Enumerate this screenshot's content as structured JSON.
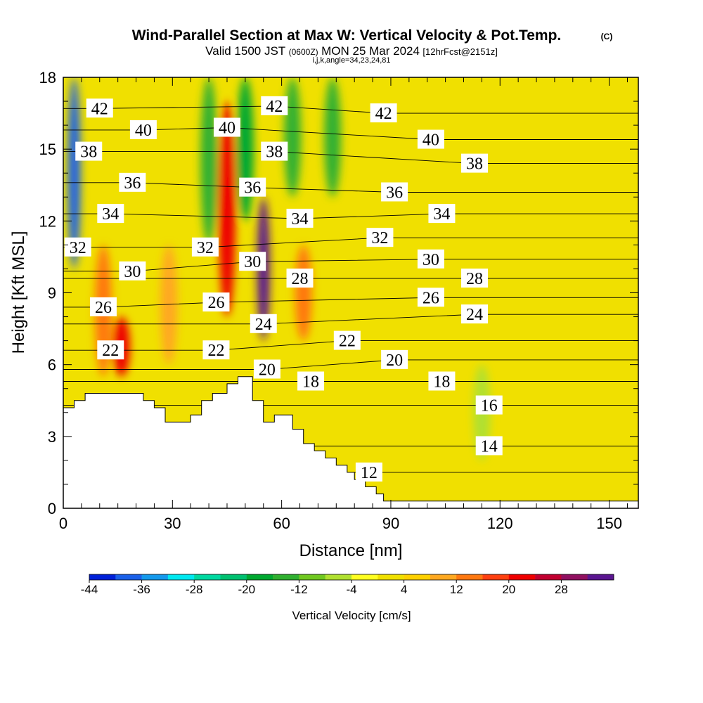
{
  "title": {
    "main": "Wind-Parallel Section at Max W: Vertical Velocity & Pot.Temp.",
    "copyright": "(C)",
    "valid_prefix": "Valid 1500 JST",
    "valid_utc": "(0600Z)",
    "valid_date": "MON 25 Mar 2024",
    "forecast": "[12hrFcst@2151z]",
    "indices": "i,j,k,angle=34,23,24,81"
  },
  "chart_data": {
    "type": "heatmap",
    "xlabel": "Distance [nm]",
    "ylabel": "Height [Kft MSL]",
    "xlim": [
      0,
      158
    ],
    "ylim": [
      0,
      18
    ],
    "x_ticks": [
      "0",
      "30",
      "60",
      "90",
      "120",
      "150"
    ],
    "x_tick_values": [
      0,
      30,
      60,
      90,
      120,
      150
    ],
    "y_ticks": [
      "0",
      "3",
      "6",
      "9",
      "12",
      "15",
      "18"
    ],
    "y_tick_values": [
      0,
      3,
      6,
      9,
      12,
      15,
      18
    ],
    "background_category": "0 to 4 cm/s",
    "vertical_velocity_features": [
      {
        "x": 3,
        "y_range": [
          10,
          18
        ],
        "value": -40
      },
      {
        "x": 11,
        "y_range": [
          5.5,
          11
        ],
        "value": 12
      },
      {
        "x": 16,
        "y_range": [
          5.5,
          8
        ],
        "value": 20
      },
      {
        "x": 29,
        "y_range": [
          6,
          11
        ],
        "value": 8
      },
      {
        "x": 40,
        "y_range": [
          11,
          18
        ],
        "value": -14
      },
      {
        "x": 45,
        "y_range": [
          8,
          17
        ],
        "value": 20
      },
      {
        "x": 50,
        "y_range": [
          12,
          18
        ],
        "value": -20
      },
      {
        "x": 55,
        "y_range": [
          7,
          13
        ],
        "value": 32
      },
      {
        "x": 63,
        "y_range": [
          13,
          18
        ],
        "value": -16
      },
      {
        "x": 66,
        "y_range": [
          7,
          11
        ],
        "value": 12
      },
      {
        "x": 74,
        "y_range": [
          13,
          18
        ],
        "value": -14
      },
      {
        "x": 115,
        "y_range": [
          2,
          6
        ],
        "value": -6
      }
    ],
    "theta_contours": [
      {
        "label": "12",
        "value": 12,
        "label_x": 84,
        "label_y": 1.5
      },
      {
        "label": "14",
        "value": 14,
        "label_x": 117,
        "label_y": 2.6
      },
      {
        "label": "16",
        "value": 16,
        "label_x": 117,
        "label_y": 4.3
      },
      {
        "label": "18",
        "value": 18,
        "label_x": 68,
        "label_y": 5.3
      },
      {
        "label": "18",
        "value": 18,
        "label_x": 104,
        "label_y": 5.3
      },
      {
        "label": "20",
        "value": 20,
        "label_x": 56,
        "label_y": 5.8
      },
      {
        "label": "20",
        "value": 20,
        "label_x": 91,
        "label_y": 6.2
      },
      {
        "label": "22",
        "value": 22,
        "label_x": 13,
        "label_y": 6.6
      },
      {
        "label": "22",
        "value": 22,
        "label_x": 42,
        "label_y": 6.6
      },
      {
        "label": "22",
        "value": 22,
        "label_x": 78,
        "label_y": 7
      },
      {
        "label": "24",
        "value": 24,
        "label_x": 55,
        "label_y": 7.7
      },
      {
        "label": "24",
        "value": 24,
        "label_x": 113,
        "label_y": 8.1
      },
      {
        "label": "26",
        "value": 26,
        "label_x": 11,
        "label_y": 8.4
      },
      {
        "label": "26",
        "value": 26,
        "label_x": 42,
        "label_y": 8.6
      },
      {
        "label": "26",
        "value": 26,
        "label_x": 101,
        "label_y": 8.8
      },
      {
        "label": "28",
        "value": 28,
        "label_x": 65,
        "label_y": 9.6
      },
      {
        "label": "28",
        "value": 28,
        "label_x": 113,
        "label_y": 9.6
      },
      {
        "label": "30",
        "value": 30,
        "label_x": 19,
        "label_y": 9.9
      },
      {
        "label": "30",
        "value": 30,
        "label_x": 52,
        "label_y": 10.3
      },
      {
        "label": "30",
        "value": 30,
        "label_x": 101,
        "label_y": 10.4
      },
      {
        "label": "32",
        "value": 32,
        "label_x": 4,
        "label_y": 10.9
      },
      {
        "label": "32",
        "value": 32,
        "label_x": 39,
        "label_y": 10.9
      },
      {
        "label": "32",
        "value": 32,
        "label_x": 87,
        "label_y": 11.3
      },
      {
        "label": "34",
        "value": 34,
        "label_x": 13,
        "label_y": 12.3
      },
      {
        "label": "34",
        "value": 34,
        "label_x": 65,
        "label_y": 12.1
      },
      {
        "label": "34",
        "value": 34,
        "label_x": 104,
        "label_y": 12.3
      },
      {
        "label": "36",
        "value": 36,
        "label_x": 19,
        "label_y": 13.6
      },
      {
        "label": "36",
        "value": 36,
        "label_x": 52,
        "label_y": 13.4
      },
      {
        "label": "36",
        "value": 36,
        "label_x": 91,
        "label_y": 13.2
      },
      {
        "label": "38",
        "value": 38,
        "label_x": 7,
        "label_y": 14.9
      },
      {
        "label": "38",
        "value": 38,
        "label_x": 58,
        "label_y": 14.9
      },
      {
        "label": "38",
        "value": 38,
        "label_x": 113,
        "label_y": 14.4
      },
      {
        "label": "40",
        "value": 40,
        "label_x": 22,
        "label_y": 15.8
      },
      {
        "label": "40",
        "value": 40,
        "label_x": 45,
        "label_y": 15.9
      },
      {
        "label": "40",
        "value": 40,
        "label_x": 101,
        "label_y": 15.4
      },
      {
        "label": "42",
        "value": 42,
        "label_x": 10,
        "label_y": 16.7
      },
      {
        "label": "42",
        "value": 42,
        "label_x": 58,
        "label_y": 16.8
      },
      {
        "label": "42",
        "value": 42,
        "label_x": 88,
        "label_y": 16.5
      }
    ],
    "terrain": [
      [
        0,
        4.2
      ],
      [
        3,
        4.2
      ],
      [
        3,
        4.5
      ],
      [
        6,
        4.5
      ],
      [
        6,
        4.8
      ],
      [
        22,
        4.8
      ],
      [
        22,
        4.5
      ],
      [
        25,
        4.5
      ],
      [
        25,
        4.2
      ],
      [
        28,
        4.2
      ],
      [
        28,
        3.6
      ],
      [
        35,
        3.6
      ],
      [
        35,
        3.9
      ],
      [
        38,
        3.9
      ],
      [
        38,
        4.5
      ],
      [
        41,
        4.5
      ],
      [
        41,
        4.8
      ],
      [
        45,
        4.8
      ],
      [
        45,
        5.2
      ],
      [
        48,
        5.2
      ],
      [
        48,
        5.5
      ],
      [
        52,
        5.5
      ],
      [
        52,
        4.5
      ],
      [
        55,
        4.5
      ],
      [
        55,
        3.6
      ],
      [
        58,
        3.6
      ],
      [
        58,
        3.9
      ],
      [
        63,
        3.9
      ],
      [
        63,
        3.3
      ],
      [
        66,
        3.3
      ],
      [
        66,
        2.7
      ],
      [
        69,
        2.7
      ],
      [
        69,
        2.4
      ],
      [
        72,
        2.4
      ],
      [
        72,
        2.1
      ],
      [
        75,
        2.1
      ],
      [
        75,
        1.8
      ],
      [
        78,
        1.8
      ],
      [
        78,
        1.5
      ],
      [
        80,
        1.5
      ],
      [
        80,
        1.2
      ],
      [
        83,
        1.2
      ],
      [
        83,
        0.9
      ],
      [
        86,
        0.9
      ],
      [
        86,
        0.6
      ],
      [
        88,
        0.6
      ],
      [
        88,
        0.3
      ],
      [
        158,
        0.3
      ]
    ],
    "colorbar": {
      "label": "Vertical Velocity [cm/s]",
      "tick_labels": [
        "-44",
        "-36",
        "-28",
        "-20",
        "-12",
        "-4",
        "4",
        "12",
        "20",
        "28"
      ],
      "boundaries": [
        -44,
        -40,
        -36,
        -32,
        -28,
        -24,
        -20,
        -16,
        -12,
        -8,
        -4,
        0,
        4,
        8,
        12,
        16,
        20,
        24,
        28,
        32
      ],
      "colors": [
        "#0020d8",
        "#1a60e8",
        "#1499ec",
        "#00e8f0",
        "#00d8a0",
        "#00c070",
        "#00a830",
        "#30b030",
        "#70c820",
        "#b0e030",
        "#ffff20",
        "#f0e000",
        "#ffd000",
        "#ffa820",
        "#ff7810",
        "#ff4010",
        "#ee0000",
        "#c00030",
        "#901060",
        "#5a1590"
      ]
    }
  }
}
